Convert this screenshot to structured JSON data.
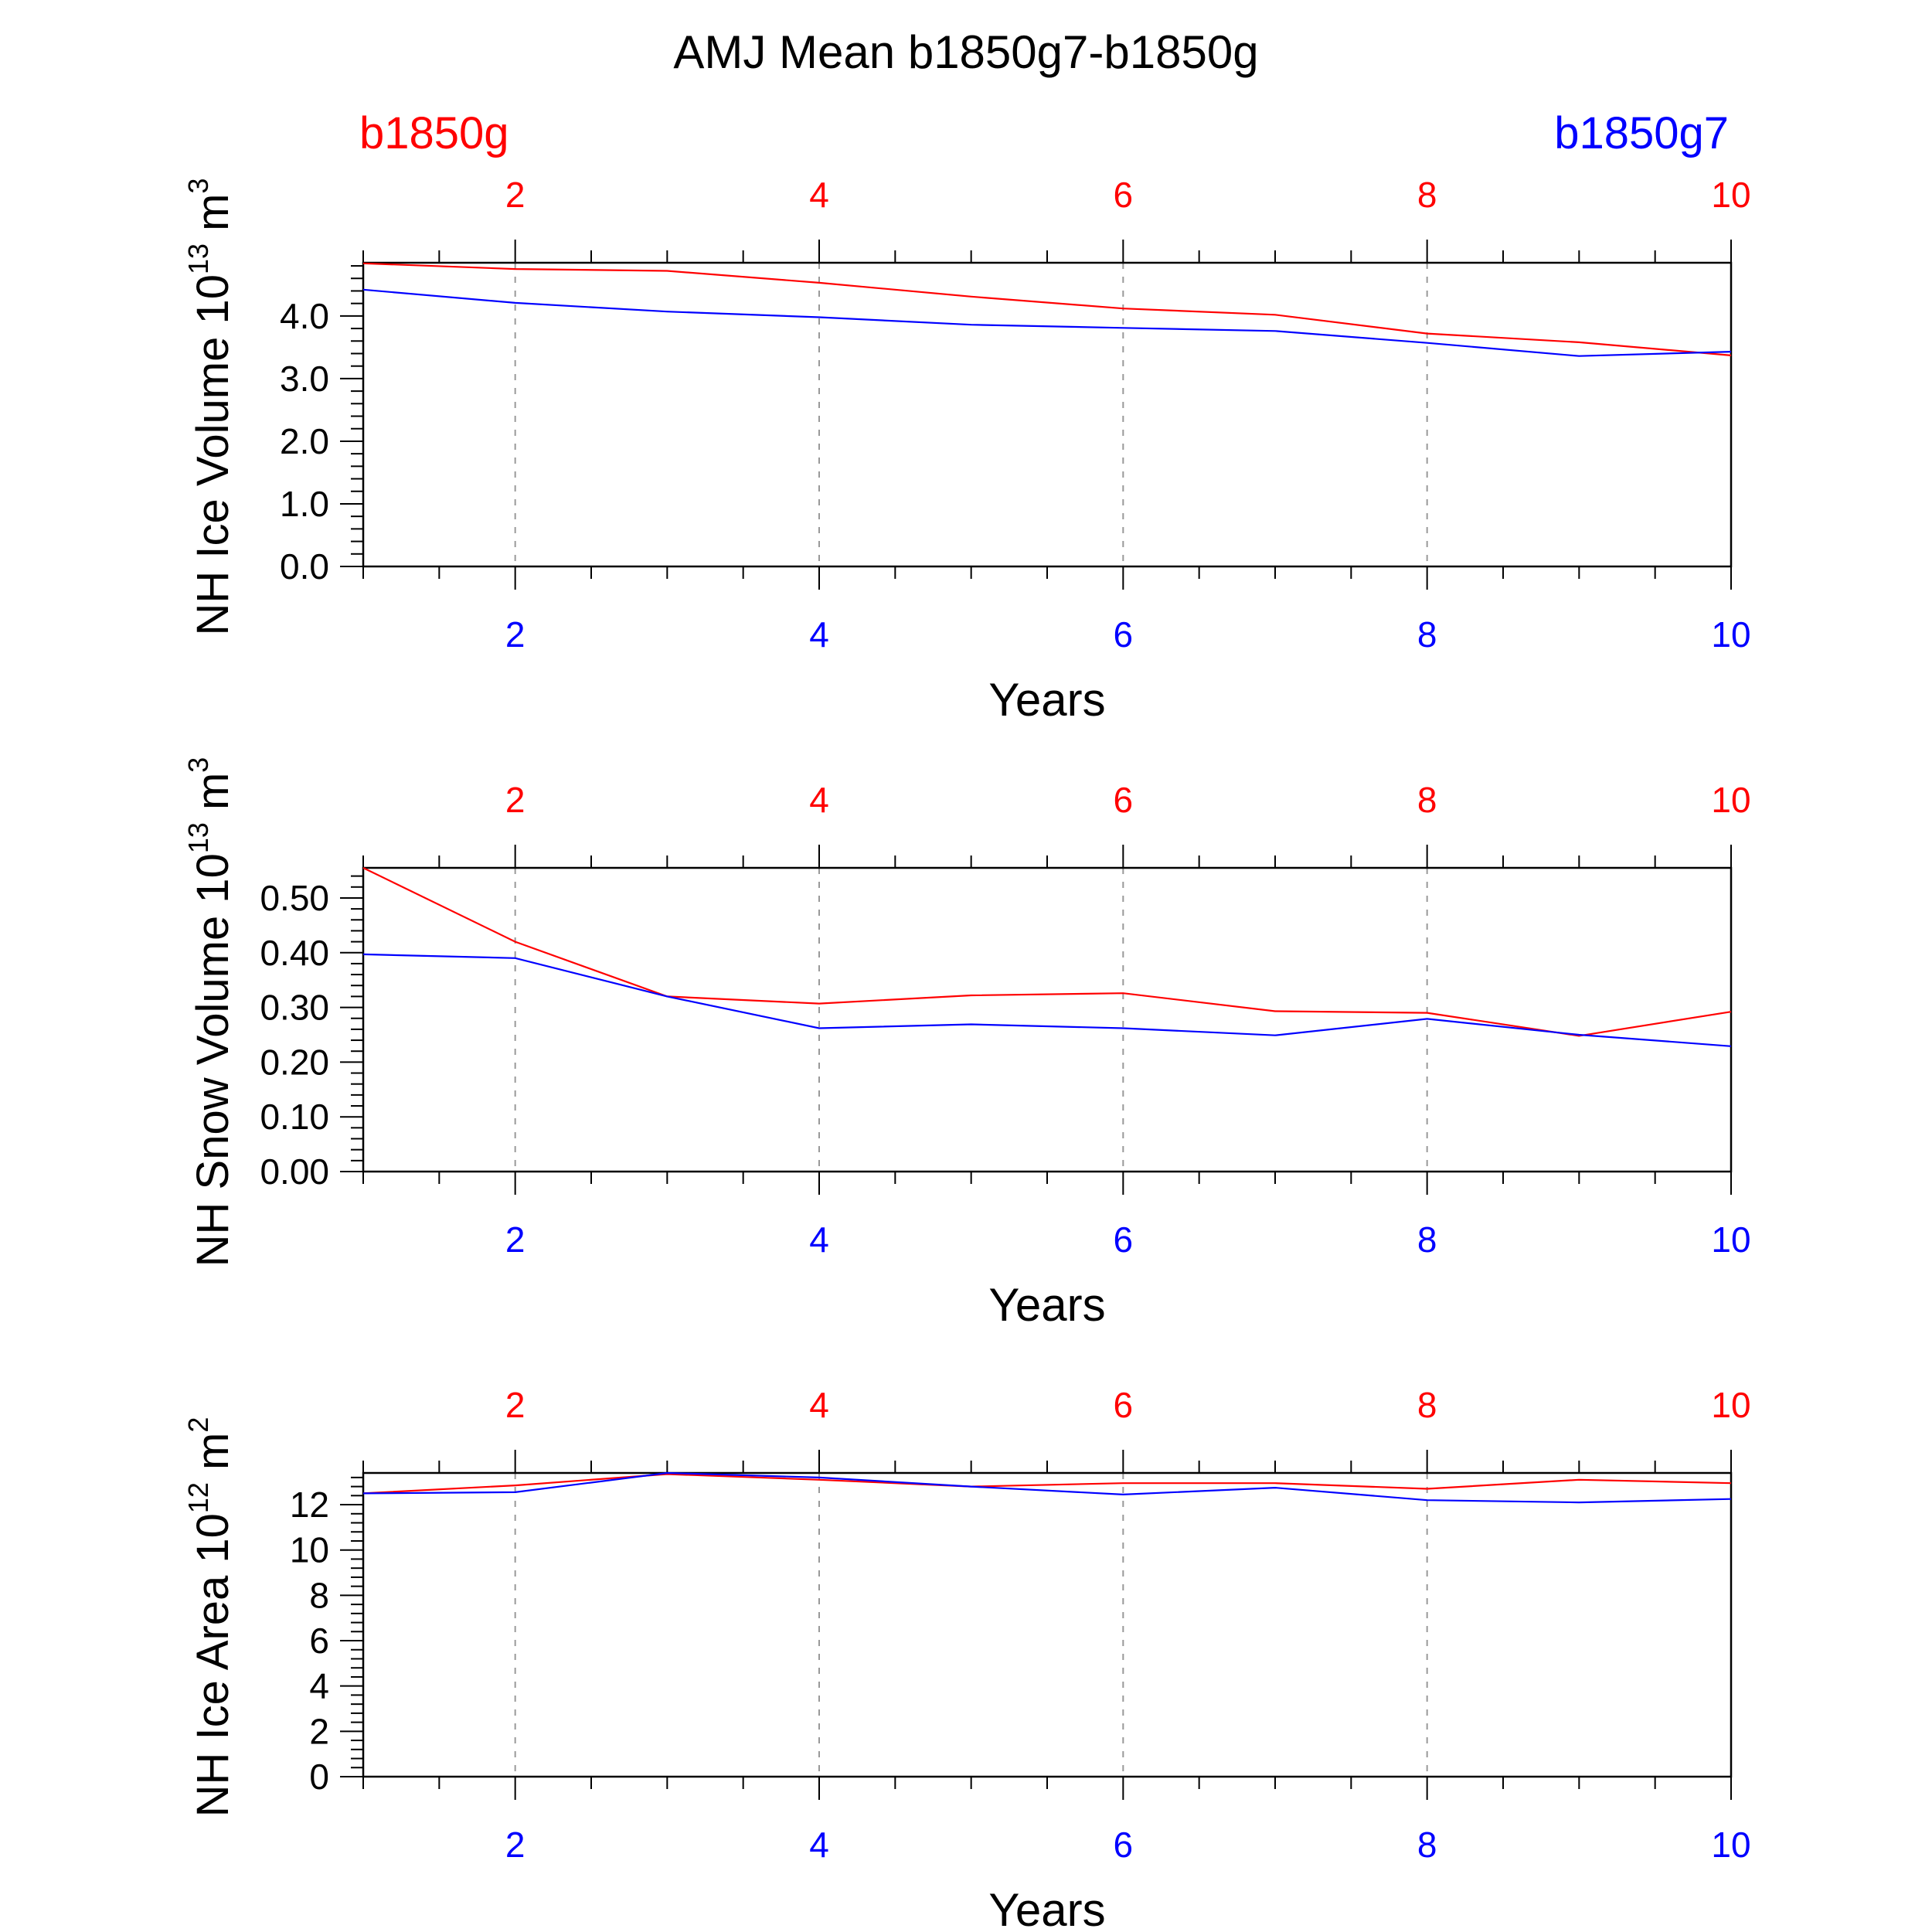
{
  "title": "AMJ Mean b1850g7-b1850g",
  "legend": {
    "left_label": "b1850g",
    "right_label": "b1850g7",
    "left_color": "#ff0000",
    "right_color": "#0000ff"
  },
  "colors": {
    "axis": "#000000",
    "grid": "#999999"
  },
  "chart_data": [
    {
      "type": "line",
      "title": "",
      "xlabel": "Years",
      "ylabel": "NH Ice Volume 10^13 m^3",
      "ylabel_main": "NH Ice Volume 10",
      "ylabel_exp": "13",
      "ylabel_unit": " m",
      "ylabel_unit_exp": "3",
      "xlim": [
        1,
        10
      ],
      "ylim": [
        0,
        4.85
      ],
      "xticks": [
        2,
        4,
        6,
        8,
        10
      ],
      "xtick_labels": [
        "2",
        "4",
        "6",
        "8",
        "10"
      ],
      "yticks": [
        0,
        1,
        2,
        3,
        4
      ],
      "ytick_labels": [
        "0.0",
        "1.0",
        "2.0",
        "3.0",
        "4.0"
      ],
      "yminor_step": 0.2,
      "x": [
        1,
        2,
        3,
        4,
        5,
        6,
        7,
        8,
        9,
        10
      ],
      "series": [
        {
          "name": "b1850g",
          "color": "#ff0000",
          "values": [
            4.84,
            4.75,
            4.72,
            4.53,
            4.31,
            4.12,
            4.02,
            3.72,
            3.58,
            3.37
          ]
        },
        {
          "name": "b1850g7",
          "color": "#0000ff",
          "values": [
            4.42,
            4.21,
            4.07,
            3.98,
            3.86,
            3.81,
            3.76,
            3.57,
            3.36,
            3.43
          ]
        }
      ]
    },
    {
      "type": "line",
      "title": "",
      "xlabel": "Years",
      "ylabel": "NH Snow Volume 10^13 m^3",
      "ylabel_main": "NH Snow Volume 10",
      "ylabel_exp": "13",
      "ylabel_unit": " m",
      "ylabel_unit_exp": "3",
      "xlim": [
        1,
        10
      ],
      "ylim": [
        0,
        0.555
      ],
      "xticks": [
        2,
        4,
        6,
        8,
        10
      ],
      "xtick_labels": [
        "2",
        "4",
        "6",
        "8",
        "10"
      ],
      "yticks": [
        0,
        0.1,
        0.2,
        0.3,
        0.4,
        0.5
      ],
      "ytick_labels": [
        "0.00",
        "0.10",
        "0.20",
        "0.30",
        "0.40",
        "0.50"
      ],
      "yminor_step": 0.02,
      "x": [
        1,
        2,
        3,
        4,
        5,
        6,
        7,
        8,
        9,
        10
      ],
      "series": [
        {
          "name": "b1850g",
          "color": "#ff0000",
          "values": [
            0.555,
            0.42,
            0.32,
            0.307,
            0.322,
            0.326,
            0.293,
            0.29,
            0.248,
            0.292
          ]
        },
        {
          "name": "b1850g7",
          "color": "#0000ff",
          "values": [
            0.397,
            0.39,
            0.32,
            0.262,
            0.269,
            0.262,
            0.249,
            0.279,
            0.25,
            0.229
          ]
        }
      ]
    },
    {
      "type": "line",
      "title": "",
      "xlabel": "Years",
      "ylabel": "NH Ice Area 10^12 m^2",
      "ylabel_main": "NH Ice Area 10",
      "ylabel_exp": "12",
      "ylabel_unit": " m",
      "ylabel_unit_exp": "2",
      "xlim": [
        1,
        10
      ],
      "ylim": [
        0,
        13.4
      ],
      "xticks": [
        2,
        4,
        6,
        8,
        10
      ],
      "xtick_labels": [
        "2",
        "4",
        "6",
        "8",
        "10"
      ],
      "yticks": [
        0,
        2,
        4,
        6,
        8,
        10,
        12
      ],
      "ytick_labels": [
        "0",
        "2",
        "4",
        "6",
        "8",
        "10",
        "12"
      ],
      "yminor_step": 0.4,
      "x": [
        1,
        2,
        3,
        4,
        5,
        6,
        7,
        8,
        9,
        10
      ],
      "series": [
        {
          "name": "b1850g",
          "color": "#ff0000",
          "values": [
            12.5,
            12.85,
            13.35,
            13.1,
            12.8,
            12.95,
            12.95,
            12.7,
            13.1,
            12.95
          ]
        },
        {
          "name": "b1850g7",
          "color": "#0000ff",
          "values": [
            12.5,
            12.55,
            13.4,
            13.2,
            12.8,
            12.45,
            12.75,
            12.2,
            12.1,
            12.25
          ]
        }
      ]
    }
  ]
}
